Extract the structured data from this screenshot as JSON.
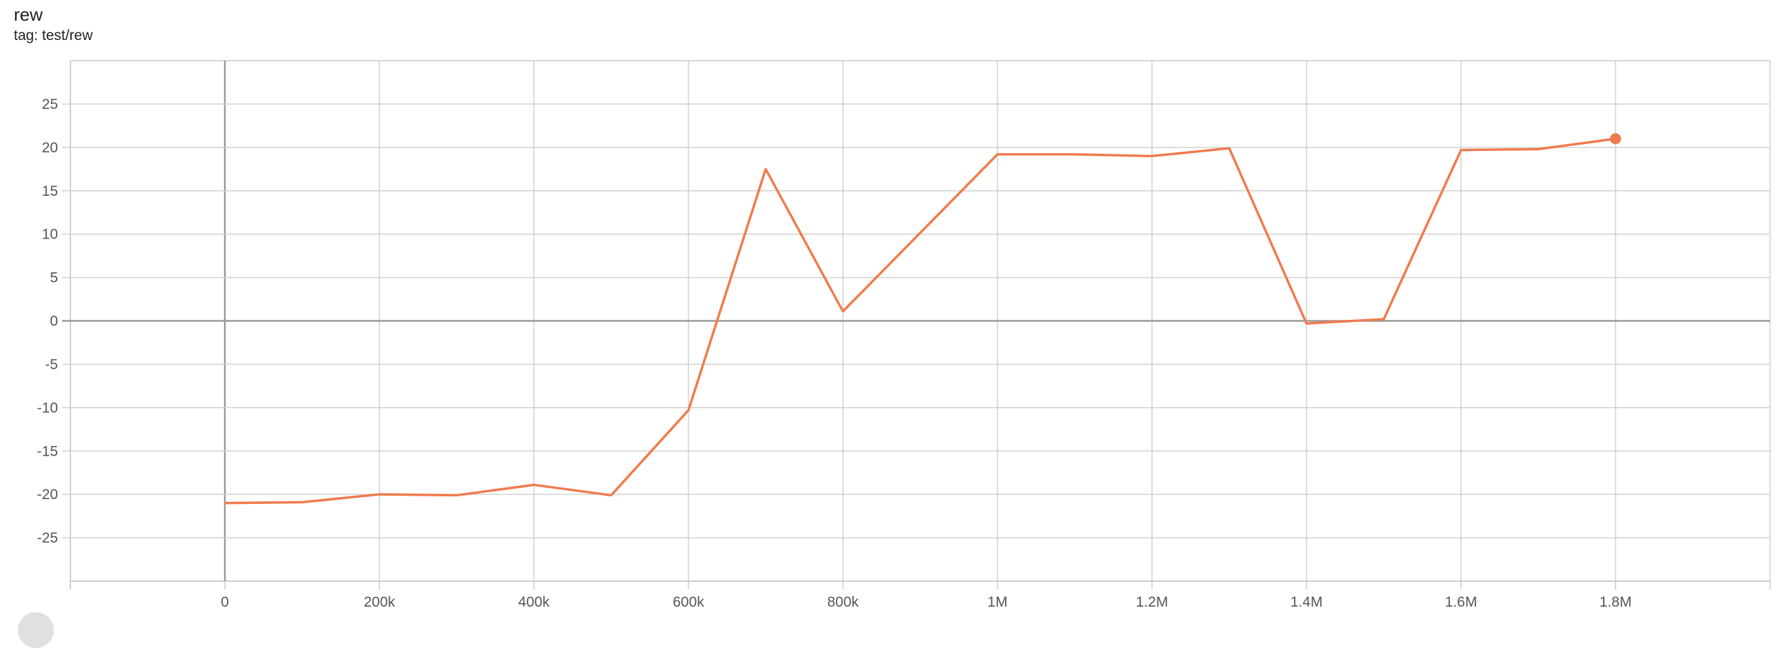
{
  "header": {
    "title": "rew",
    "subtitle": "tag: test/rew"
  },
  "chart_data": {
    "type": "line",
    "title": "rew",
    "subtitle": "tag: test/rew",
    "xlabel": "",
    "ylabel": "",
    "xlim": [
      -200000,
      2000000
    ],
    "ylim": [
      -30,
      30
    ],
    "grid": true,
    "x_ticks": [
      0,
      200000,
      400000,
      600000,
      800000,
      1000000,
      1200000,
      1400000,
      1600000,
      1800000
    ],
    "x_tick_labels": [
      "0",
      "200k",
      "400k",
      "600k",
      "800k",
      "1M",
      "1.2M",
      "1.4M",
      "1.6M",
      "1.8M"
    ],
    "y_ticks": [
      25,
      20,
      15,
      10,
      5,
      0,
      -5,
      -10,
      -15,
      -20,
      -25
    ],
    "y_tick_labels": [
      "25",
      "20",
      "15",
      "10",
      "5",
      "0",
      "-5",
      "-10",
      "-15",
      "-20",
      "-25"
    ],
    "color": "#ef7b4d",
    "series": [
      {
        "x": [
          0,
          100000,
          200000,
          300000,
          400000,
          500000,
          600000,
          700000,
          800000,
          1000000,
          1100000,
          1200000,
          1300000,
          1400000,
          1500000,
          1600000,
          1700000,
          1800000
        ],
        "y": [
          -21.0,
          -20.9,
          -20.0,
          -20.1,
          -18.9,
          -20.1,
          -10.3,
          17.5,
          1.1,
          19.2,
          19.2,
          19.0,
          19.9,
          -0.3,
          0.2,
          19.7,
          19.8,
          21.0
        ]
      }
    ]
  }
}
